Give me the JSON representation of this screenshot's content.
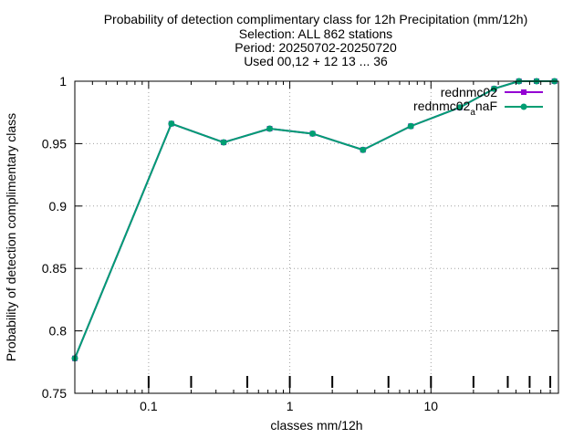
{
  "chart_data": {
    "type": "line",
    "title": [
      "Probability of detection complimentary class  for 12h Precipitation (mm/12h)",
      "Selection: ALL    862 stations",
      "Period: 20250702-20250720",
      "Used 00,12 + 12 13 ... 36"
    ],
    "xlabel": "classes mm/12h",
    "ylabel": "Probability of detection complimentary class",
    "x_scale": "log",
    "xlim": [
      0.03,
      80
    ],
    "ylim": [
      0.75,
      1.0
    ],
    "x_ticks": [
      {
        "value": 0.1,
        "label": "0.1"
      },
      {
        "value": 1,
        "label": "1"
      },
      {
        "value": 10,
        "label": "10"
      }
    ],
    "y_ticks": [
      {
        "value": 0.75,
        "label": "0.75"
      },
      {
        "value": 0.8,
        "label": "0.8"
      },
      {
        "value": 0.85,
        "label": "0.85"
      },
      {
        "value": 0.9,
        "label": "0.9"
      },
      {
        "value": 0.95,
        "label": "0.95"
      },
      {
        "value": 1.0,
        "label": "1"
      }
    ],
    "grid": true,
    "legend_position": "top-right",
    "threshold_markers": [
      0.1,
      0.2,
      0.5,
      1,
      2,
      5,
      10,
      20,
      35,
      50,
      70
    ],
    "series": [
      {
        "name": "rednmc02",
        "color": "#9400d3",
        "x": [
          0.03,
          0.145,
          0.34,
          0.72,
          1.45,
          3.3,
          7.2,
          16,
          28,
          42,
          56,
          75
        ],
        "y": [
          0.778,
          0.966,
          0.951,
          0.962,
          0.958,
          0.945,
          0.964,
          0.979,
          0.994,
          1.0,
          1.0,
          1.0
        ]
      },
      {
        "name": "rednmc02_anaF",
        "legend_main": "rednmc02",
        "legend_sub": "a",
        "legend_suffix": "naF",
        "color": "#009e73",
        "x": [
          0.03,
          0.145,
          0.34,
          0.72,
          1.45,
          3.3,
          7.2,
          16,
          28,
          42,
          56,
          75
        ],
        "y": [
          0.778,
          0.966,
          0.951,
          0.962,
          0.958,
          0.945,
          0.964,
          0.979,
          0.994,
          1.0,
          1.0,
          1.0
        ]
      }
    ]
  }
}
